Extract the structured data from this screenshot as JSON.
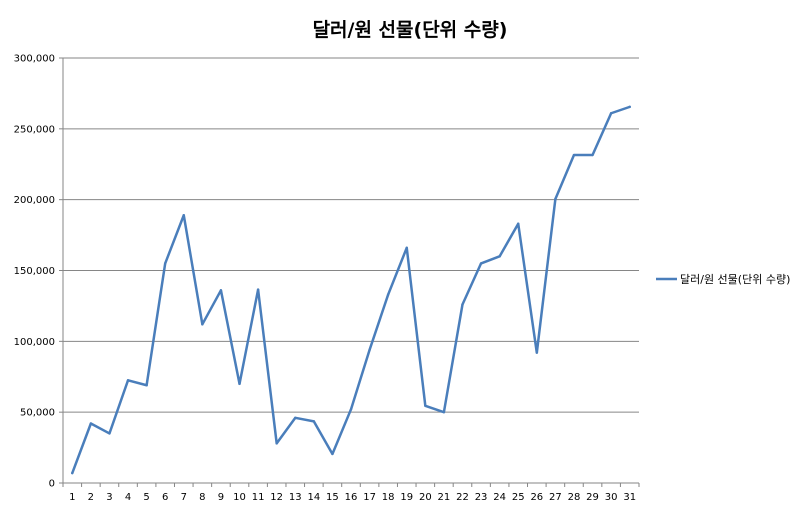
{
  "chart_data": {
    "type": "line",
    "title": "달러/원 선물(단위 수량)",
    "xlabel": "",
    "ylabel": "",
    "categories": [
      "1",
      "2",
      "3",
      "4",
      "5",
      "6",
      "7",
      "8",
      "9",
      "10",
      "11",
      "12",
      "13",
      "14",
      "15",
      "16",
      "17",
      "18",
      "19",
      "20",
      "21",
      "22",
      "23",
      "24",
      "25",
      "26",
      "27",
      "28",
      "29",
      "30",
      "31"
    ],
    "y_ticks": [
      "0",
      "50,000",
      "100,000",
      "150,000",
      "200,000",
      "250,000",
      "300,000"
    ],
    "ylim": [
      0,
      300000
    ],
    "grid": true,
    "legend_position": "right",
    "series": [
      {
        "name": "달러/원 선물(단위 수량)",
        "color": "#4a7ebb",
        "values": [
          7000,
          42000,
          35000,
          72500,
          69000,
          155000,
          189000,
          112000,
          136000,
          70000,
          136500,
          28000,
          46000,
          43500,
          20500,
          52000,
          94000,
          133000,
          166000,
          54500,
          50000,
          126000,
          155000,
          160000,
          183000,
          92000,
          200500,
          231500,
          231500,
          261000,
          265500
        ]
      }
    ]
  }
}
